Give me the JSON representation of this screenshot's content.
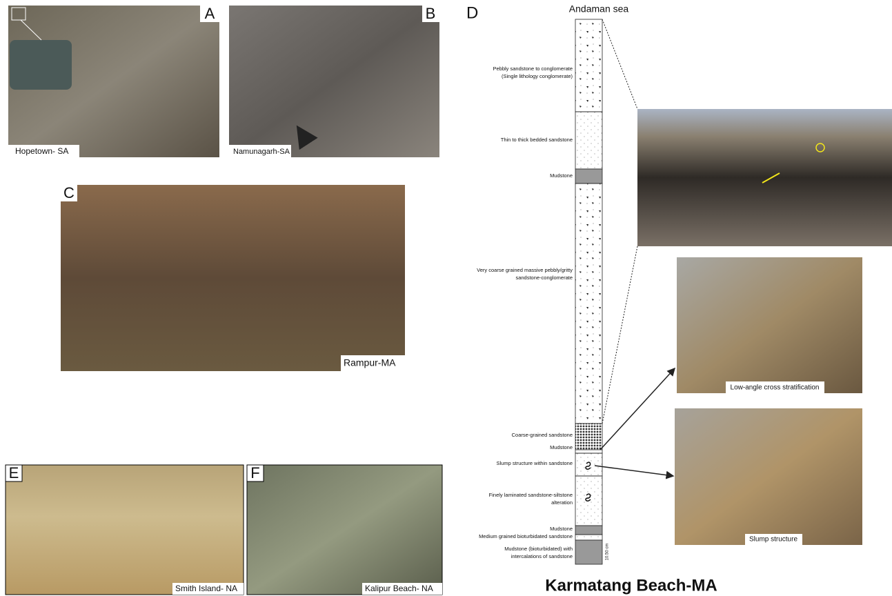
{
  "panels": {
    "A": {
      "label": "A",
      "caption": "Hopetown- SA"
    },
    "B": {
      "label": "B",
      "caption": "Namunagarh-SA"
    },
    "C": {
      "label": "C",
      "caption": "Rampur-MA"
    },
    "D": {
      "label": "D"
    },
    "E": {
      "label": "E",
      "caption": "Smith Island- NA"
    },
    "F": {
      "label": "F",
      "caption": "Kalipur Beach- NA"
    }
  },
  "column": {
    "top_label": "Andaman sea",
    "scale": "10.50 cm",
    "units": [
      {
        "lines": [
          "Pebbly sandstone to conglomerate",
          "(Single lithology conglomerate)"
        ]
      },
      {
        "lines": [
          "Thin to thick bedded sandstone"
        ]
      },
      {
        "lines": [
          "Mudstone"
        ]
      },
      {
        "lines": [
          "Very coarse grained massive pebbly/gritty",
          "sandstone-conglomerate"
        ]
      },
      {
        "lines": [
          "Coarse-grained sandstone"
        ]
      },
      {
        "lines": [
          "Mudstone"
        ]
      },
      {
        "lines": [
          "Slump structure within sandstone"
        ]
      },
      {
        "lines": [
          "Finely laminated sandstone-siltstone",
          "alteration"
        ]
      },
      {
        "lines": [
          "Mudstone"
        ]
      },
      {
        "lines": [
          "Medium grained bioturbidated sandstone"
        ]
      },
      {
        "lines": [
          "Mudstone (bioturbidated) with",
          "intercalations of sandstone"
        ]
      }
    ]
  },
  "photos": [
    {
      "caption": "Low-angle cross stratification"
    },
    {
      "caption": "Slump structure"
    }
  ],
  "title": "Karmatang Beach-MA"
}
